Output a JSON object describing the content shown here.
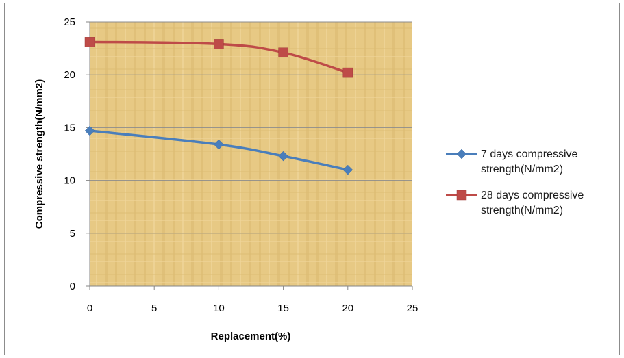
{
  "chart_data": {
    "type": "line",
    "title": "",
    "xlabel": "Replacement(%)",
    "ylabel": "Compressive strength(N/mm2)",
    "xlim": [
      0,
      25
    ],
    "ylim": [
      0,
      25
    ],
    "xticks": [
      0,
      5,
      10,
      15,
      20,
      25
    ],
    "yticks": [
      0,
      5,
      10,
      15,
      20,
      25
    ],
    "grid": "horizontal",
    "legend_position": "right",
    "series": [
      {
        "name": "7 days compressive strength(N/mm2)",
        "legend_lines": [
          "7 days compressive",
          "strength(N/mm2)"
        ],
        "color": "#4a7ebb",
        "marker": "diamond",
        "x": [
          0,
          10,
          15,
          20
        ],
        "y": [
          14.7,
          13.4,
          12.3,
          11.0
        ]
      },
      {
        "name": "28 days compressive strength(N/mm2)",
        "legend_lines": [
          "28 days compressive",
          "strength(N/mm2)"
        ],
        "color": "#be4b48",
        "marker": "square",
        "x": [
          0,
          10,
          15,
          20
        ],
        "y": [
          23.1,
          22.9,
          22.1,
          20.2
        ]
      }
    ],
    "plot_background": "#e6c882"
  }
}
